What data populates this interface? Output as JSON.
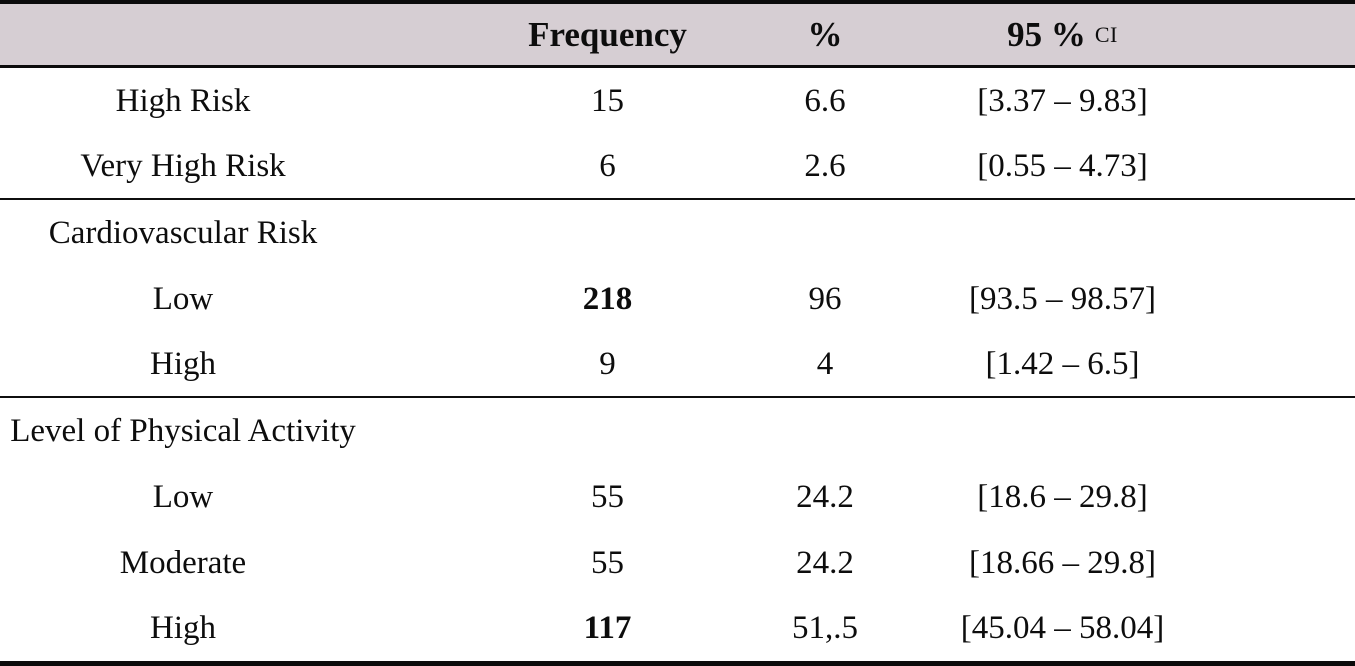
{
  "table": {
    "header": {
      "label_col": "",
      "frequency": "Frequency",
      "percent": "%",
      "ci_main": "95 %",
      "ci_abbr": "CI"
    },
    "rows": [
      {
        "type": "data",
        "label": "High Risk",
        "frequency": "15",
        "percent": "6.6",
        "ci": "[3.37 – 9.83]"
      },
      {
        "type": "data",
        "label": "Very High Risk",
        "frequency": "6",
        "percent": "2.6",
        "ci": "[0.55 – 4.73]"
      },
      {
        "type": "section",
        "label": "Cardiovascular Risk"
      },
      {
        "type": "data",
        "label": "Low",
        "frequency": "218",
        "percent": "96",
        "ci": "[93.5 – 98.57]"
      },
      {
        "type": "data",
        "label": "High",
        "frequency": "9",
        "percent": "4",
        "ci": "[1.42 – 6.5]"
      },
      {
        "type": "section",
        "label": "Level of Physical Activity"
      },
      {
        "type": "data",
        "label": "Low",
        "frequency": "55",
        "percent": "24.2",
        "ci": "[18.6 – 29.8]"
      },
      {
        "type": "data",
        "label": "Moderate",
        "frequency": "55",
        "percent": "24.2",
        "ci": "[18.66 – 29.8]"
      },
      {
        "type": "data",
        "label": "High",
        "frequency": "117",
        "percent": "51,.5",
        "ci": "[45.04 – 58.04]"
      }
    ],
    "colors": {
      "header_bg": "#d6ced3",
      "rule": "#0b0b0b",
      "text": "#0d0d0d"
    }
  }
}
